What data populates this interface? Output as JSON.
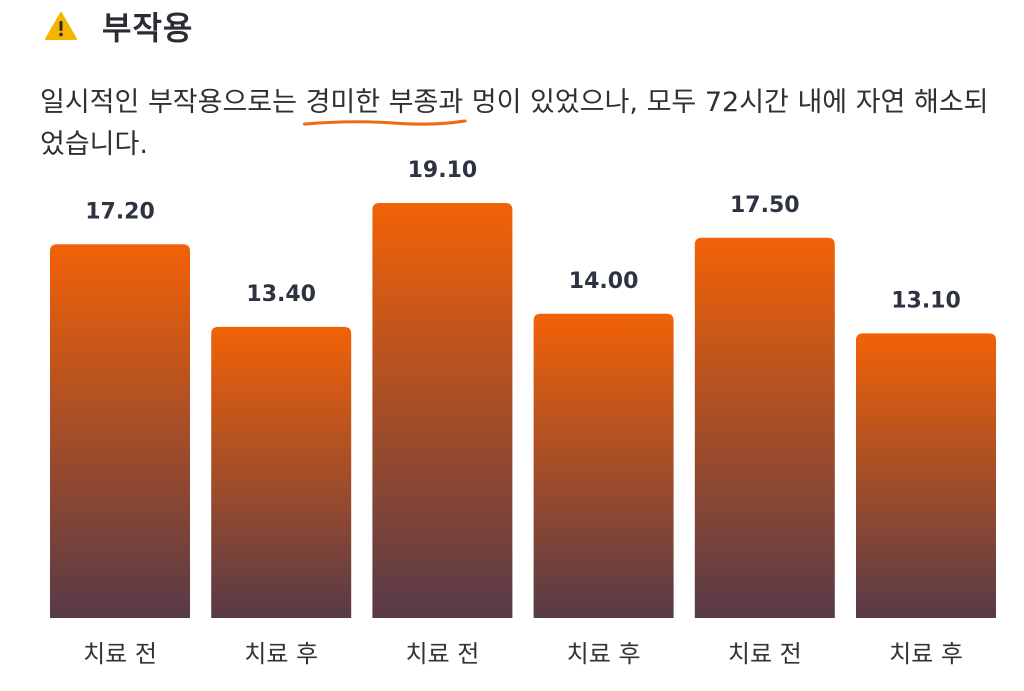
{
  "header": {
    "icon": "warning-icon",
    "title": "부작용"
  },
  "description": {
    "before": "일시적인 부작용으로는 ",
    "highlight": "경미한 부종과",
    "after": " 멍이 있었으나, 모두 72시간 내에 자연 해소되었습니다."
  },
  "colors": {
    "bar_top": "#f26207",
    "bar_bottom": "#573a48",
    "underline": "#ee6a14",
    "warning": "#f4b400"
  },
  "chart_data": {
    "type": "bar",
    "categories": [
      "치료 전",
      "치료 후",
      "치료 전",
      "치료 후",
      "치료 전",
      "치료 후"
    ],
    "values": [
      17.2,
      13.4,
      19.1,
      14.0,
      17.5,
      13.1
    ],
    "value_labels": [
      "17.20",
      "13.40",
      "19.10",
      "14.00",
      "17.50",
      "13.10"
    ],
    "ylim": [
      0,
      19.1
    ],
    "grid": false,
    "legend": "none"
  }
}
